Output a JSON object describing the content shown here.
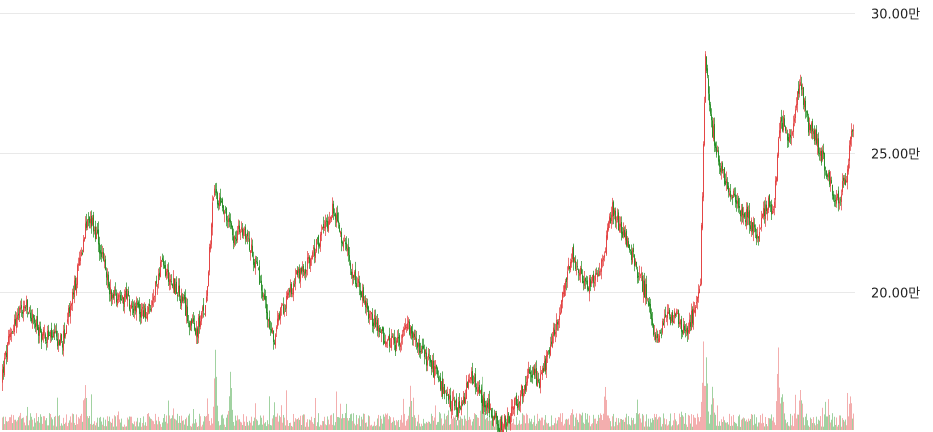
{
  "chart_data": {
    "type": "candlestick",
    "title": "",
    "xlabel": "",
    "ylabel": "",
    "ylim": [
      149000,
      300000
    ],
    "grid": true,
    "y_ticks": [
      {
        "value": 300000,
        "label": "30.00만"
      },
      {
        "value": 250000,
        "label": "25.00만"
      },
      {
        "value": 200000,
        "label": "20.00만"
      }
    ],
    "colors": {
      "up": "#e23a3a",
      "down": "#1e8a1e",
      "grid": "#e9e9e9",
      "volume_up": "#f2a5a5",
      "volume_down": "#97cd97"
    },
    "price_path_keypoints": [
      [
        0,
        168000
      ],
      [
        12,
        188000
      ],
      [
        25,
        195000
      ],
      [
        40,
        185000
      ],
      [
        50,
        184000
      ],
      [
        62,
        182000
      ],
      [
        75,
        203000
      ],
      [
        88,
        228000
      ],
      [
        100,
        215000
      ],
      [
        110,
        200000
      ],
      [
        125,
        198000
      ],
      [
        140,
        193000
      ],
      [
        150,
        192000
      ],
      [
        160,
        210000
      ],
      [
        170,
        205000
      ],
      [
        180,
        198000
      ],
      [
        195,
        185000
      ],
      [
        205,
        195000
      ],
      [
        213,
        235000
      ],
      [
        222,
        232000
      ],
      [
        232,
        220000
      ],
      [
        245,
        222000
      ],
      [
        255,
        210000
      ],
      [
        265,
        195000
      ],
      [
        273,
        183000
      ],
      [
        283,
        195000
      ],
      [
        295,
        205000
      ],
      [
        305,
        208000
      ],
      [
        318,
        218000
      ],
      [
        332,
        230000
      ],
      [
        340,
        220000
      ],
      [
        350,
        210000
      ],
      [
        365,
        195000
      ],
      [
        380,
        185000
      ],
      [
        395,
        180000
      ],
      [
        410,
        188000
      ],
      [
        420,
        178000
      ],
      [
        430,
        175000
      ],
      [
        445,
        162000
      ],
      [
        460,
        157000
      ],
      [
        470,
        170000
      ],
      [
        480,
        163000
      ],
      [
        490,
        157000
      ],
      [
        500,
        152000
      ],
      [
        508,
        155000
      ],
      [
        520,
        163000
      ],
      [
        530,
        172000
      ],
      [
        540,
        168000
      ],
      [
        550,
        180000
      ],
      [
        560,
        195000
      ],
      [
        572,
        213000
      ],
      [
        585,
        202000
      ],
      [
        600,
        207000
      ],
      [
        612,
        230000
      ],
      [
        622,
        222000
      ],
      [
        635,
        210000
      ],
      [
        645,
        200000
      ],
      [
        655,
        182000
      ],
      [
        665,
        190000
      ],
      [
        675,
        193000
      ],
      [
        685,
        184000
      ],
      [
        695,
        195000
      ],
      [
        700,
        205000
      ],
      [
        705,
        285000
      ],
      [
        710,
        262000
      ],
      [
        720,
        245000
      ],
      [
        730,
        235000
      ],
      [
        740,
        230000
      ],
      [
        750,
        225000
      ],
      [
        758,
        218000
      ],
      [
        765,
        232000
      ],
      [
        773,
        230000
      ],
      [
        780,
        262000
      ],
      [
        790,
        255000
      ],
      [
        800,
        275000
      ],
      [
        808,
        260000
      ],
      [
        815,
        255000
      ],
      [
        825,
        245000
      ],
      [
        835,
        232000
      ],
      [
        845,
        240000
      ],
      [
        852,
        260000
      ]
    ],
    "volume_spikes": [
      [
        85,
        0.6
      ],
      [
        215,
        0.9
      ],
      [
        230,
        0.7
      ],
      [
        410,
        0.5
      ],
      [
        482,
        0.8
      ],
      [
        605,
        0.6
      ],
      [
        703,
        1.0
      ],
      [
        706,
        0.85
      ],
      [
        712,
        0.6
      ],
      [
        778,
        1.0
      ],
      [
        782,
        0.55
      ],
      [
        800,
        0.5
      ],
      [
        850,
        0.5
      ]
    ]
  }
}
